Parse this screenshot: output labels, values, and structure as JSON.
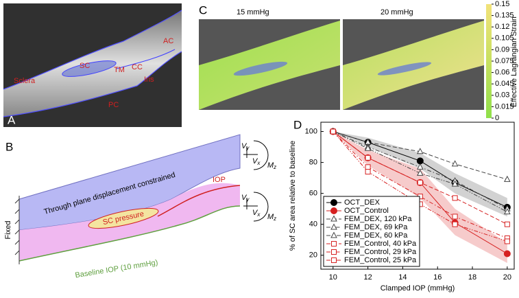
{
  "panel_a": {
    "letter": "A",
    "labels": [
      "Sclera",
      "SC",
      "TM",
      "CC",
      "AC",
      "Iris",
      "PC"
    ]
  },
  "panel_b": {
    "letter": "B",
    "plane": "Through plane displacement constrained",
    "iop": "IOP",
    "sc_pressure": "SC pressure",
    "baseline": "Baseline IOP (10 mmHg)",
    "fixed": "Fixed",
    "loads": [
      {
        "base": "V",
        "sub": "y"
      },
      {
        "base": "V",
        "sub": "x"
      },
      {
        "base": "M",
        "sub": "z"
      }
    ]
  },
  "panel_c": {
    "letter": "C",
    "titles": [
      "15 mmHg",
      "20 mmHg"
    ],
    "colorbar": {
      "label": "Effective Lagrangian Strain",
      "lim": [
        0,
        0.15
      ],
      "ticks": [
        0,
        0.015,
        0.03,
        0.045,
        0.06,
        0.075,
        0.09,
        0.105,
        0.12,
        0.135,
        0.15
      ],
      "colors": [
        "#8fe04a",
        "#c8e060",
        "#f2e27a"
      ]
    }
  },
  "panel_d": {
    "letter": "D"
  },
  "chart_data": {
    "type": "line",
    "x_label": "Clamped IOP (mmHg)",
    "y_label": "% of SC area relative to baseline",
    "x": [
      10,
      12,
      15,
      17,
      20
    ],
    "xlim": [
      9.3,
      20.4
    ],
    "ylim": [
      11,
      106
    ],
    "xticks": [
      10,
      12,
      14,
      16,
      18,
      20
    ],
    "yticks": [
      20,
      40,
      60,
      80,
      100
    ],
    "grid": false,
    "legend": "lower left",
    "series": [
      {
        "name": "OCT_DEX",
        "color": "#000000",
        "marker": "circle",
        "filled": true,
        "dash": "solid",
        "values": [
          100,
          93,
          81,
          67,
          51
        ],
        "band_lower": [
          100,
          90,
          76,
          60,
          45
        ],
        "band_upper": [
          100,
          96,
          86,
          73,
          57
        ],
        "band_color": "#b4b4b4"
      },
      {
        "name": "OCT_Control",
        "color": "#d62020",
        "marker": "circle",
        "filled": true,
        "dash": "solid",
        "values": [
          100,
          83,
          67,
          41,
          21
        ],
        "band_lower": [
          100,
          78,
          57,
          33,
          15
        ],
        "band_upper": [
          100,
          88,
          76,
          50,
          28
        ],
        "band_color": "#f0a8a8"
      },
      {
        "name": "FEM_DEX, 120 kPa",
        "color": "#444444",
        "marker": "triangle",
        "filled": false,
        "dash": "dashed",
        "values": [
          100,
          93,
          87,
          79,
          69
        ]
      },
      {
        "name": "FEM_DEX, 69 kPa",
        "color": "#444444",
        "marker": "triangle",
        "filled": false,
        "dash": "dashdot",
        "values": [
          100,
          90,
          77,
          68,
          50
        ]
      },
      {
        "name": "FEM_DEX, 60 kPa",
        "color": "#444444",
        "marker": "triangle",
        "filled": false,
        "dash": "dashdotdot",
        "values": [
          100,
          89,
          73,
          66,
          48
        ]
      },
      {
        "name": "FEM_Control, 40 kPa",
        "color": "#d62020",
        "marker": "square",
        "filled": false,
        "dash": "dashed",
        "values": [
          100,
          83,
          67,
          57,
          40
        ]
      },
      {
        "name": "FEM_Control, 29 kPa",
        "color": "#d62020",
        "marker": "square",
        "filled": false,
        "dash": "dashdot",
        "values": [
          100,
          77,
          58,
          45,
          31
        ]
      },
      {
        "name": "FEM_Control, 25 kPa",
        "color": "#d62020",
        "marker": "square",
        "filled": false,
        "dash": "dashdotdot",
        "values": [
          100,
          74,
          53,
          40,
          29
        ]
      }
    ]
  }
}
